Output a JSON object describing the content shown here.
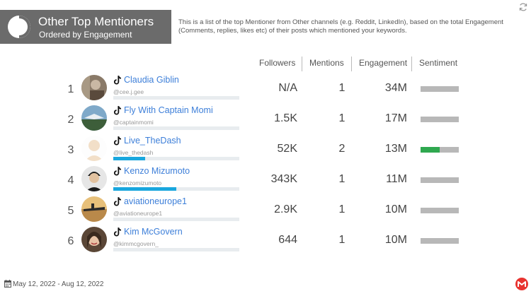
{
  "header": {
    "title": "Other Top Mentioners",
    "subtitle": "Ordered by Engagement",
    "description": "This is a list of the top Mentioner from Other channels (e.g. Reddit, LinkedIn), based on the total Engagement (Comments, replies, likes etc) of their posts which mentioned your keywords."
  },
  "columns": {
    "followers": "Followers",
    "mentions": "Mentions",
    "engagement": "Engagement",
    "sentiment": "Sentiment"
  },
  "rows": [
    {
      "rank": "1",
      "name": "Claudia Giblin",
      "handle": "@cee.j.gee",
      "followers": "N/A",
      "mentions": "1",
      "engagement": "34M",
      "reach_fraction": 0.0,
      "sentiment_positive_fraction": 0.0,
      "platform_icon": "tiktok-icon"
    },
    {
      "rank": "2",
      "name": "Fly With Captain Momi",
      "handle": "@captainmomi",
      "followers": "1.5K",
      "mentions": "1",
      "engagement": "17M",
      "reach_fraction": 0.0,
      "sentiment_positive_fraction": 0.0,
      "platform_icon": "tiktok-icon"
    },
    {
      "rank": "3",
      "name": "Live_TheDash",
      "handle": "@live_thedash",
      "followers": "52K",
      "mentions": "2",
      "engagement": "13M",
      "reach_fraction": 0.25,
      "sentiment_positive_fraction": 0.5,
      "platform_icon": "tiktok-icon"
    },
    {
      "rank": "4",
      "name": "Kenzo Mizumoto",
      "handle": "@kenzomizumoto",
      "followers": "343K",
      "mentions": "1",
      "engagement": "11M",
      "reach_fraction": 0.5,
      "sentiment_positive_fraction": 0.0,
      "platform_icon": "tiktok-icon"
    },
    {
      "rank": "5",
      "name": "aviationeurope1",
      "handle": "@aviationeurope1",
      "followers": "2.9K",
      "mentions": "1",
      "engagement": "10M",
      "reach_fraction": 0.0,
      "sentiment_positive_fraction": 0.0,
      "platform_icon": "tiktok-icon"
    },
    {
      "rank": "6",
      "name": "Kim McGovern",
      "handle": "@kimmcgovern_",
      "followers": "644",
      "mentions": "1",
      "engagement": "10M",
      "reach_fraction": 0.0,
      "sentiment_positive_fraction": 0.0,
      "platform_icon": "tiktok-icon"
    }
  ],
  "footer": {
    "date_range": "May 12, 2022 - Aug 12, 2022"
  },
  "colors": {
    "header_bg": "#6b6b6b",
    "link": "#3d7fd9",
    "reach_bar": "#1aa7de",
    "sentiment_positive": "#2fa84f",
    "sentiment_neutral": "#b8b8b8",
    "brand": "#e8332f"
  }
}
